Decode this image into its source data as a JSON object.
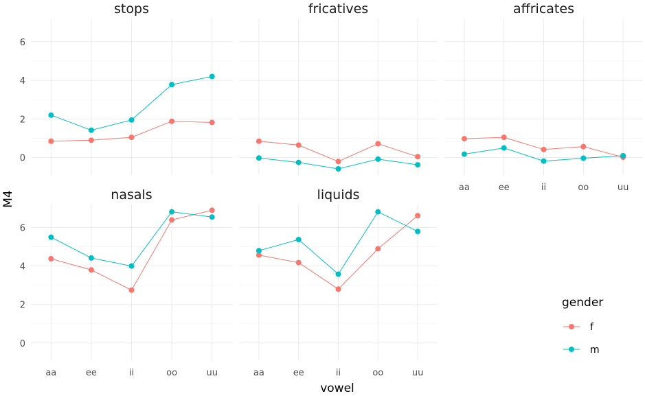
{
  "chart_data": {
    "type": "line",
    "facet_var": "manner",
    "xlabel": "vowel",
    "ylabel": "M4",
    "categories": [
      "aa",
      "ee",
      "ii",
      "oo",
      "uu"
    ],
    "yticks": [
      0,
      2,
      4,
      6
    ],
    "ylim": [
      -0.9,
      7.2
    ],
    "grid": true,
    "legend": {
      "title": "gender",
      "position": "right",
      "entries": [
        {
          "label": "f",
          "color": "#F8766D"
        },
        {
          "label": "m",
          "color": "#00BFC4"
        }
      ]
    },
    "panels": [
      {
        "title": "stops",
        "series": [
          {
            "name": "f",
            "values": [
              0.85,
              0.9,
              1.05,
              1.88,
              1.82
            ]
          },
          {
            "name": "m",
            "values": [
              2.2,
              1.42,
              1.95,
              3.78,
              4.2
            ]
          }
        ]
      },
      {
        "title": "fricatives",
        "series": [
          {
            "name": "f",
            "values": [
              0.85,
              0.65,
              -0.2,
              0.72,
              0.05
            ]
          },
          {
            "name": "m",
            "values": [
              -0.02,
              -0.25,
              -0.58,
              -0.08,
              -0.37
            ]
          }
        ]
      },
      {
        "title": "affricates",
        "series": [
          {
            "name": "f",
            "values": [
              0.98,
              1.05,
              0.42,
              0.57,
              0.02
            ]
          },
          {
            "name": "m",
            "values": [
              0.18,
              0.5,
              -0.18,
              -0.03,
              0.1
            ]
          }
        ]
      },
      {
        "title": "nasals",
        "series": [
          {
            "name": "f",
            "values": [
              4.38,
              3.8,
              2.75,
              6.4,
              6.9
            ]
          },
          {
            "name": "m",
            "values": [
              5.5,
              4.42,
              4.0,
              6.82,
              6.55
            ]
          }
        ]
      },
      {
        "title": "liquids",
        "series": [
          {
            "name": "f",
            "values": [
              4.57,
              4.18,
              2.8,
              4.9,
              6.62
            ]
          },
          {
            "name": "m",
            "values": [
              4.8,
              5.38,
              3.58,
              6.82,
              5.8
            ]
          }
        ]
      }
    ]
  }
}
